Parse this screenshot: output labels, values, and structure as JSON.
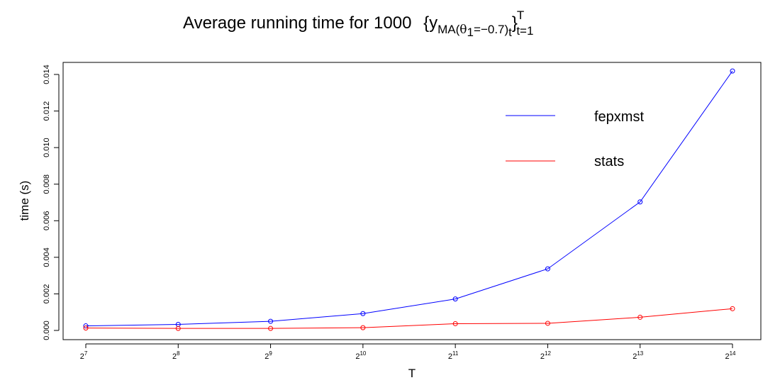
{
  "chart_data": {
    "type": "line",
    "title": {
      "prefix": "Average running time for 1000",
      "brace_open": "{",
      "y": "y",
      "ma": "MA",
      "theta": "θ",
      "theta_sub": "1",
      "eq": "=−0.7)",
      "t": "t",
      "brace_close": "}",
      "sup": "T",
      "sub": "t=1",
      "paren_open": "("
    },
    "xlabel": "T",
    "ylabel": "time (s)",
    "x_tick_base": "2",
    "x": [
      7,
      8,
      9,
      10,
      11,
      12,
      13,
      14
    ],
    "ylim": [
      0,
      0.0145
    ],
    "yticks": [
      "0.000",
      "0.002",
      "0.004",
      "0.006",
      "0.008",
      "0.010",
      "0.012",
      "0.014"
    ],
    "series": [
      {
        "name": "fepxmst",
        "color": "#0000ff",
        "values": [
          0.00025,
          0.00033,
          0.0005,
          0.00092,
          0.00172,
          0.00337,
          0.00703,
          0.01419
        ]
      },
      {
        "name": "stats",
        "color": "#ff0000",
        "values": [
          0.00013,
          0.00011,
          0.00011,
          0.00015,
          0.00037,
          0.00039,
          0.00072,
          0.00119
        ]
      }
    ],
    "legend_position": "top-right",
    "grid": false
  }
}
